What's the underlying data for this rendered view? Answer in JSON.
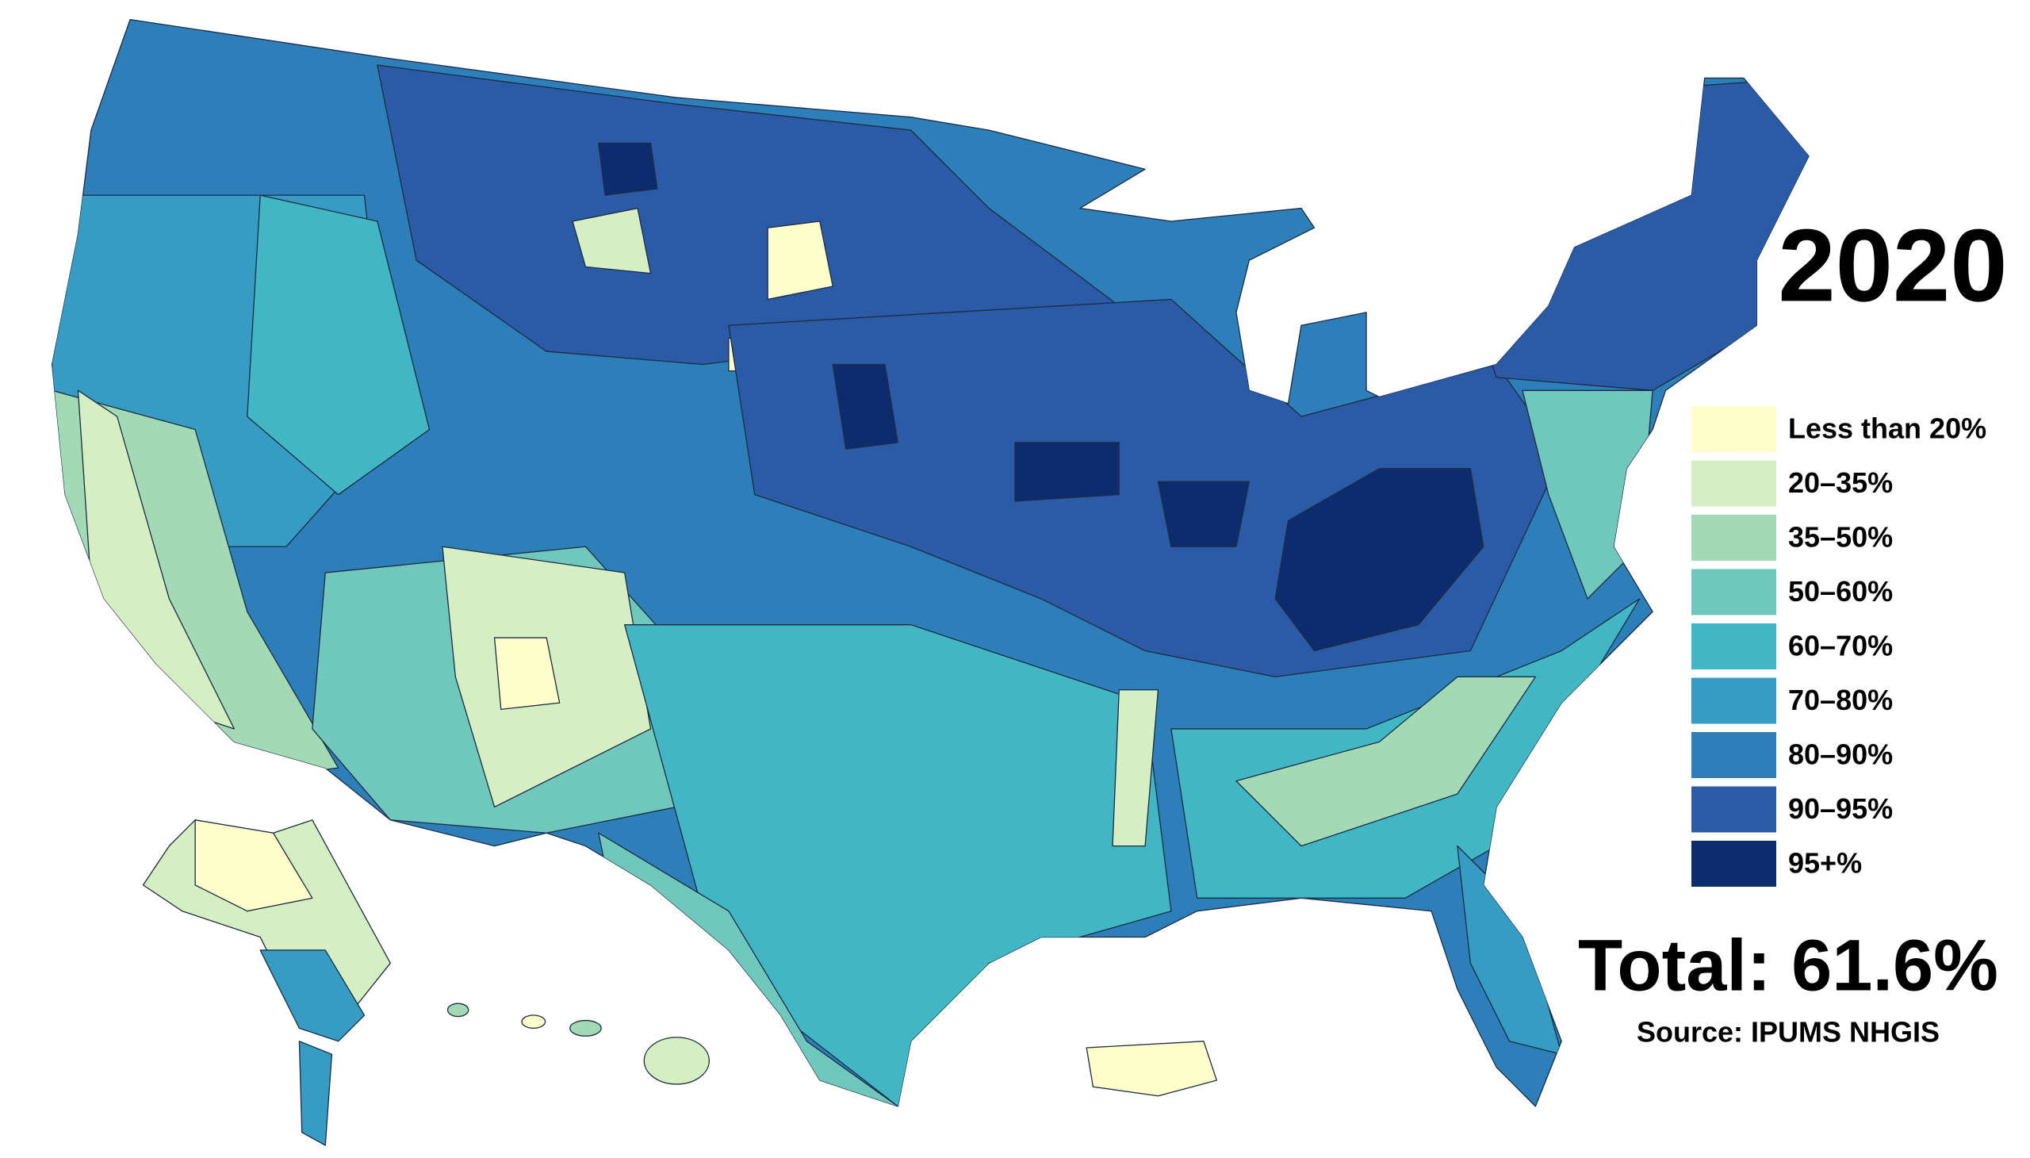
{
  "title": "2020",
  "legend": [
    {
      "label": "Less than 20%",
      "color": "#ffffcc"
    },
    {
      "label": "20–35%",
      "color": "#d6efc2"
    },
    {
      "label": "35–50%",
      "color": "#a1dab4"
    },
    {
      "label": "50–60%",
      "color": "#6fc8bb"
    },
    {
      "label": "60–70%",
      "color": "#41b6c4"
    },
    {
      "label": "70–80%",
      "color": "#379cc4"
    },
    {
      "label": "80–90%",
      "color": "#2c7fb8"
    },
    {
      "label": "90–95%",
      "color": "#2b5aa6"
    },
    {
      "label": "95+%",
      "color": "#0c2c6e"
    }
  ],
  "total": "Total: 61.6%",
  "source": "Source: IPUMS NHGIS"
}
